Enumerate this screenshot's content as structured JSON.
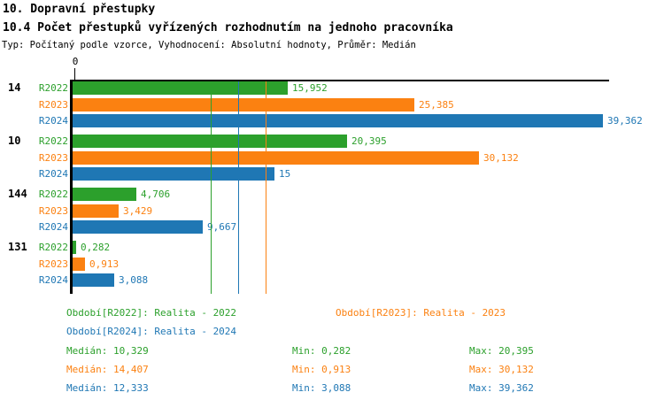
{
  "header": {
    "title": "10. Dopravní přestupky",
    "subtitle": "10.4 Počet přestupků vyřízených rozhodnutím na jednoho pracovníka",
    "meta": "Typ: Počítaný podle vzorce, Vyhodnocení: Absolutní hodnoty, Průměr: Medián"
  },
  "colors": {
    "r2022": "#2ca02c",
    "r2023": "#fb8111",
    "r2024": "#1f77b4",
    "axis": "#000000"
  },
  "chart_data": {
    "type": "bar",
    "orientation": "horizontal",
    "title": "10.4 Počet přestupků vyřízených rozhodnutím na jednoho pracovníka",
    "xlabel": "",
    "ylabel": "",
    "xlim": [
      0,
      39.8
    ],
    "x_tick_labels": [
      "0"
    ],
    "grid": false,
    "legend_position": "bottom",
    "categories": [
      "14",
      "10",
      "144",
      "131"
    ],
    "series": [
      {
        "name": "R2022",
        "color": "#2ca02c",
        "values": [
          15.952,
          20.395,
          4.706,
          0.282
        ],
        "value_labels": [
          "15,952",
          "20,395",
          "4,706",
          "0,282"
        ],
        "median": 10.329,
        "min": 0.282,
        "max": 20.395
      },
      {
        "name": "R2023",
        "color": "#fb8111",
        "values": [
          25.385,
          30.132,
          3.429,
          0.913
        ],
        "value_labels": [
          "25,385",
          "30,132",
          "3,429",
          "0,913"
        ],
        "median": 14.407,
        "min": 0.913,
        "max": 30.132
      },
      {
        "name": "R2024",
        "color": "#1f77b4",
        "values": [
          39.362,
          15.0,
          9.667,
          3.088
        ],
        "value_labels": [
          "39,362",
          "15",
          "9,667",
          "3,088"
        ],
        "median": 12.333,
        "min": 3.088,
        "max": 39.362
      }
    ],
    "median_lines": [
      {
        "series": "R2022",
        "value": 10.329,
        "color": "#2ca02c"
      },
      {
        "series": "R2024",
        "value": 12.333,
        "color": "#1f77b4"
      },
      {
        "series": "R2023",
        "value": 14.407,
        "color": "#fb8111"
      }
    ]
  },
  "axis": {
    "zero_label": "0"
  },
  "legend": [
    {
      "label": "Období[R2022]: Realita - 2022",
      "color_key": "r2022"
    },
    {
      "label": "Období[R2023]: Realita - 2023",
      "color_key": "r2023"
    },
    {
      "label": "Období[R2024]: Realita - 2024",
      "color_key": "r2024"
    }
  ],
  "stats": [
    {
      "median": "Medián: 10,329",
      "min": "Min: 0,282",
      "max": "Max: 20,395",
      "color_key": "r2022"
    },
    {
      "median": "Medián: 14,407",
      "min": "Min: 0,913",
      "max": "Max: 30,132",
      "color_key": "r2023"
    },
    {
      "median": "Medián: 12,333",
      "min": "Min: 3,088",
      "max": "Max: 39,362",
      "color_key": "r2024"
    }
  ]
}
